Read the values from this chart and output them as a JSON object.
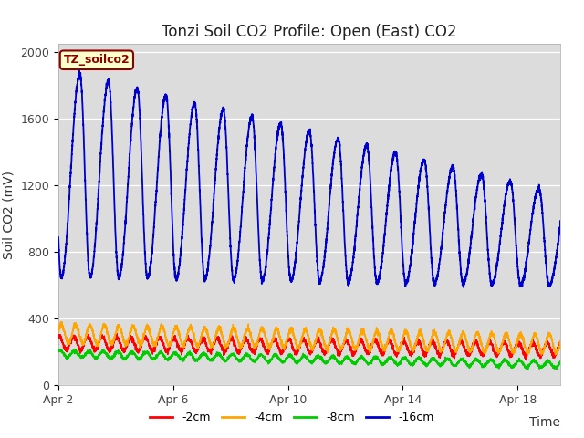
{
  "title": "Tonzi Soil CO2 Profile: Open (East) CO2",
  "ylabel": "Soil CO2 (mV)",
  "xlabel": "Time",
  "ylim": [
    0,
    2050
  ],
  "xlim": [
    0,
    17.5
  ],
  "xtick_positions": [
    0,
    4,
    8,
    12,
    16
  ],
  "xtick_labels": [
    "Apr 2",
    "Apr 6",
    "Apr 10",
    "Apr 14",
    "Apr 18"
  ],
  "ytick_positions": [
    0,
    400,
    800,
    1200,
    1600,
    2000
  ],
  "bg_color": "#dcdcdc",
  "fig_color": "#ffffff",
  "legend_entries": [
    "-2cm",
    "-4cm",
    "-8cm",
    "-16cm"
  ],
  "line_colors": [
    "#ff0000",
    "#ffa500",
    "#00cc00",
    "#0000cc"
  ],
  "label_text": "TZ_soilco2",
  "label_bg": "#ffffcc",
  "label_border": "#8b0000",
  "title_fontsize": 12,
  "axis_fontsize": 10
}
